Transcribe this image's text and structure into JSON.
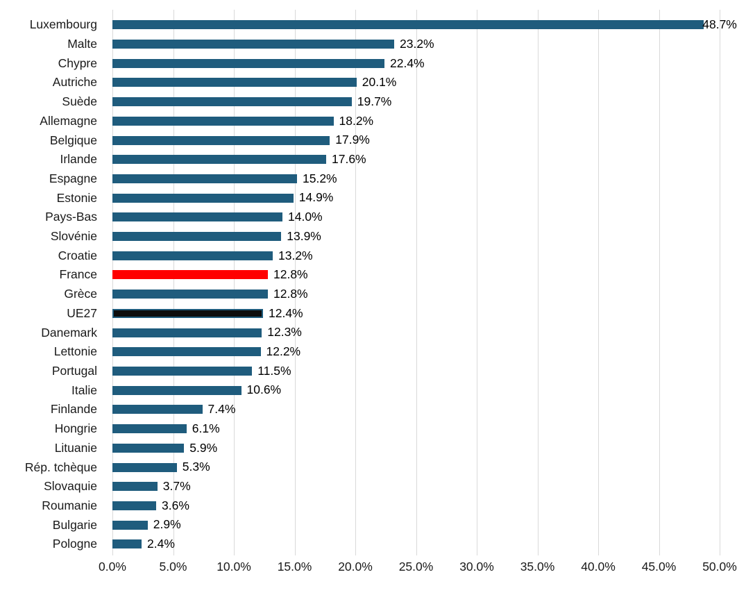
{
  "chart_data": {
    "type": "bar",
    "orientation": "horizontal",
    "title": "",
    "xlabel": "",
    "ylabel": "",
    "xlim": [
      0,
      50
    ],
    "grid": "vertical",
    "gridline_color": "#d9d9d9",
    "bar_color": "#1f5c7d",
    "categories": [
      "Luxembourg",
      "Malte",
      "Chypre",
      "Autriche",
      "Suède",
      "Allemagne",
      "Belgique",
      "Irlande",
      "Espagne",
      "Estonie",
      "Pays-Bas",
      "Slovénie",
      "Croatie",
      "France",
      "Grèce",
      "UE27",
      "Danemark",
      "Lettonie",
      "Portugal",
      "Italie",
      "Finlande",
      "Hongrie",
      "Lituanie",
      "Rép. tchèque",
      "Slovaquie",
      "Roumanie",
      "Bulgarie",
      "Pologne"
    ],
    "values": [
      48.7,
      23.2,
      22.4,
      20.1,
      19.7,
      18.2,
      17.9,
      17.6,
      15.2,
      14.9,
      14.0,
      13.9,
      13.2,
      12.8,
      12.8,
      12.4,
      12.3,
      12.2,
      11.5,
      10.6,
      7.4,
      6.1,
      5.9,
      5.3,
      3.7,
      3.6,
      2.9,
      2.4
    ],
    "value_labels": [
      "48.7%",
      "23.2%",
      "22.4%",
      "20.1%",
      "19.7%",
      "18.2%",
      "17.9%",
      "17.6%",
      "15.2%",
      "14.9%",
      "14.0%",
      "13.9%",
      "13.2%",
      "12.8%",
      "12.8%",
      "12.4%",
      "12.3%",
      "12.2%",
      "11.5%",
      "10.6%",
      "7.4%",
      "6.1%",
      "5.9%",
      "5.3%",
      "3.7%",
      "3.6%",
      "2.9%",
      "2.4%"
    ],
    "x_ticks": [
      "0.0%",
      "5.0%",
      "10.0%",
      "15.0%",
      "20.0%",
      "25.0%",
      "30.0%",
      "35.0%",
      "40.0%",
      "45.0%",
      "50.0%"
    ],
    "highlights": {
      "France": {
        "fill": "#ff0000"
      },
      "UE27": {
        "fill": "#0d0d0d",
        "border": "#1f5c7d"
      }
    }
  }
}
